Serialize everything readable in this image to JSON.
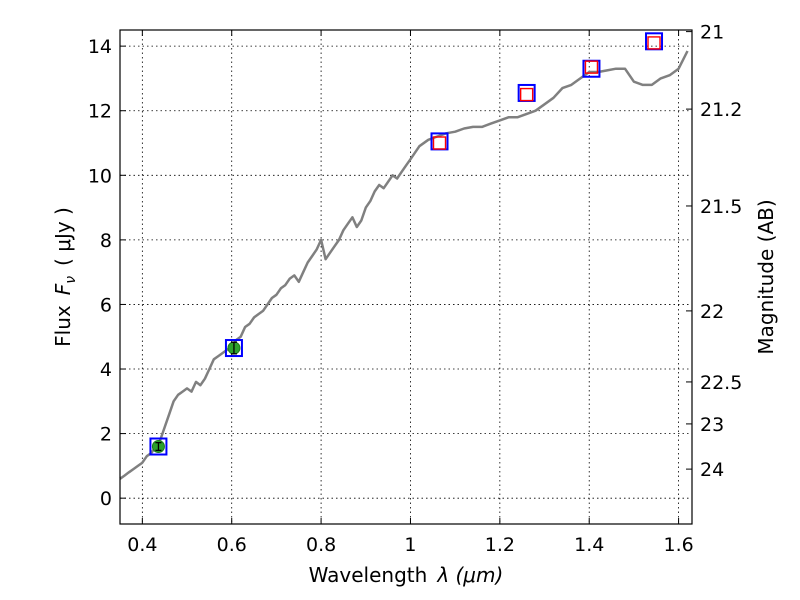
{
  "chart_data": {
    "type": "line",
    "xlabel_text": "Wavelength",
    "xlabel_math": "λ (μm)",
    "ylabel_text": "Flux",
    "ylabel_math": "F",
    "ylabel_sub": "ν",
    "ylabel_unit": "( μJy )",
    "y2label": "Magnitude (AB)",
    "xlim": [
      0.35,
      1.63
    ],
    "ylim": [
      -0.8,
      14.5
    ],
    "xticks": [
      0.4,
      0.6,
      0.8,
      1.0,
      1.2,
      1.4,
      1.6
    ],
    "xtick_labels": [
      "0.4",
      "0.6",
      "0.8",
      "1",
      "1.2",
      "1.4",
      "1.6"
    ],
    "yticks": [
      0,
      2,
      4,
      6,
      8,
      10,
      12,
      14
    ],
    "ytick_labels": [
      "0",
      "2",
      "4",
      "6",
      "8",
      "10",
      "12",
      "14"
    ],
    "y2ticks": [
      {
        "flux": 14.45,
        "label": "21"
      },
      {
        "flux": 12.05,
        "label": "21.2"
      },
      {
        "flux": 9.05,
        "label": "21.5"
      },
      {
        "flux": 5.8,
        "label": "22"
      },
      {
        "flux": 3.6,
        "label": "22.5"
      },
      {
        "flux": 2.3,
        "label": "23"
      },
      {
        "flux": 0.9,
        "label": "24"
      }
    ],
    "grid": true,
    "colors": {
      "model": "#808080",
      "observed_fill": "#2ca02c",
      "observed_edge": "#1a7a1a",
      "model_square": "#0000ff",
      "synthetic_square": "#ff0000"
    },
    "series": [
      {
        "kind": "model_spectrum",
        "x": [
          0.35,
          0.36,
          0.37,
          0.38,
          0.39,
          0.4,
          0.41,
          0.42,
          0.43,
          0.44,
          0.45,
          0.46,
          0.47,
          0.48,
          0.49,
          0.5,
          0.51,
          0.52,
          0.53,
          0.54,
          0.55,
          0.56,
          0.57,
          0.58,
          0.59,
          0.6,
          0.61,
          0.62,
          0.63,
          0.64,
          0.65,
          0.66,
          0.67,
          0.68,
          0.69,
          0.7,
          0.71,
          0.72,
          0.73,
          0.74,
          0.75,
          0.76,
          0.77,
          0.78,
          0.79,
          0.8,
          0.81,
          0.82,
          0.83,
          0.84,
          0.85,
          0.86,
          0.87,
          0.88,
          0.89,
          0.9,
          0.91,
          0.92,
          0.93,
          0.94,
          0.95,
          0.96,
          0.97,
          0.98,
          0.99,
          1.0,
          1.02,
          1.04,
          1.06,
          1.08,
          1.1,
          1.12,
          1.14,
          1.16,
          1.18,
          1.2,
          1.22,
          1.24,
          1.26,
          1.28,
          1.3,
          1.32,
          1.34,
          1.36,
          1.38,
          1.4,
          1.42,
          1.44,
          1.46,
          1.48,
          1.5,
          1.52,
          1.54,
          1.56,
          1.58,
          1.6,
          1.62
        ],
        "y": [
          0.6,
          0.7,
          0.8,
          0.9,
          1.0,
          1.1,
          1.3,
          1.4,
          1.6,
          1.8,
          2.2,
          2.6,
          3.0,
          3.2,
          3.3,
          3.4,
          3.3,
          3.6,
          3.5,
          3.7,
          4.0,
          4.3,
          4.4,
          4.5,
          4.6,
          4.7,
          4.9,
          5.0,
          5.3,
          5.4,
          5.6,
          5.7,
          5.8,
          6.0,
          6.2,
          6.3,
          6.5,
          6.6,
          6.8,
          6.9,
          6.7,
          7.0,
          7.3,
          7.5,
          7.7,
          8.0,
          7.4,
          7.6,
          7.8,
          8.0,
          8.3,
          8.5,
          8.7,
          8.4,
          8.6,
          9.0,
          9.2,
          9.5,
          9.7,
          9.6,
          9.8,
          10.0,
          9.9,
          10.1,
          10.3,
          10.5,
          10.9,
          11.1,
          11.2,
          11.3,
          11.35,
          11.45,
          11.5,
          11.5,
          11.6,
          11.7,
          11.8,
          11.8,
          11.9,
          12.0,
          12.2,
          12.4,
          12.7,
          12.8,
          13.0,
          13.2,
          13.2,
          13.25,
          13.3,
          13.3,
          12.9,
          12.8,
          12.8,
          13.0,
          13.1,
          13.3,
          13.85
        ]
      },
      {
        "kind": "observed_photometry",
        "x": [
          0.436,
          0.605
        ],
        "y": [
          1.6,
          4.65
        ],
        "yerr": [
          0.12,
          0.18
        ]
      },
      {
        "kind": "model_bandpass_flux",
        "x": [
          0.436,
          0.605,
          1.065,
          1.26,
          1.405,
          1.545
        ],
        "y": [
          1.6,
          4.65,
          11.05,
          12.55,
          13.3,
          14.15
        ]
      },
      {
        "kind": "synthetic_bandpass_flux",
        "x": [
          1.065,
          1.26,
          1.405,
          1.545
        ],
        "y": [
          11.0,
          12.5,
          13.35,
          14.1
        ]
      }
    ]
  }
}
